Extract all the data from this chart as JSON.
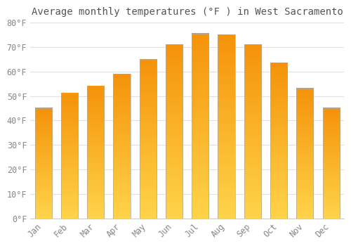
{
  "title": "Average monthly temperatures (°F ) in West Sacramento",
  "months": [
    "Jan",
    "Feb",
    "Mar",
    "Apr",
    "May",
    "Jun",
    "Jul",
    "Aug",
    "Sep",
    "Oct",
    "Nov",
    "Dec"
  ],
  "values": [
    45,
    51,
    54,
    59,
    65,
    71,
    75.5,
    75,
    71,
    63.5,
    53,
    45
  ],
  "bar_color_top": "#FFA500",
  "bar_color_bottom": "#FFD700",
  "bar_edge_color": "#AAAAAA",
  "ylim": [
    0,
    80
  ],
  "yticks": [
    0,
    10,
    20,
    30,
    40,
    50,
    60,
    70,
    80
  ],
  "ytick_labels": [
    "0°F",
    "10°F",
    "20°F",
    "30°F",
    "40°F",
    "50°F",
    "60°F",
    "70°F",
    "80°F"
  ],
  "title_fontsize": 10,
  "tick_fontsize": 8.5,
  "bg_color": "#FFFFFF",
  "grid_color": "#E0E0E0",
  "bar_width": 0.65
}
